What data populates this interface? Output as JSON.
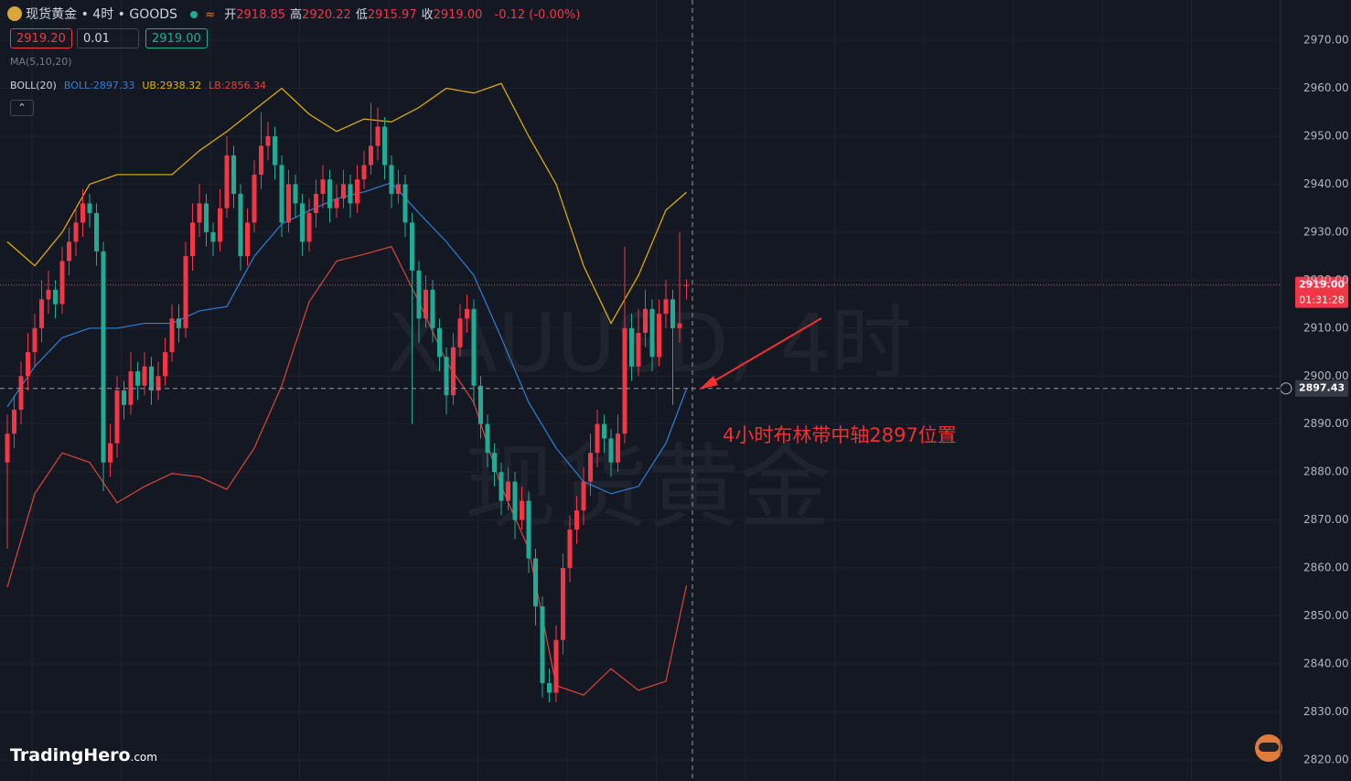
{
  "header": {
    "symbol": "现货黄金 • 4时 • GOODS",
    "ohlc": [
      {
        "label": "开",
        "value": "2918.85"
      },
      {
        "label": "高",
        "value": "2920.22"
      },
      {
        "label": "低",
        "value": "2915.97"
      },
      {
        "label": "收",
        "value": "2919.00"
      }
    ],
    "change": "-0.12 (-0.00%)",
    "sell": "2919.20",
    "qty": "0.01",
    "buy": "2919.00",
    "ma": "MA(5,10,20)",
    "boll_title": "BOLL(20)"
  },
  "chart_data": {
    "type": "candlestick",
    "open": [
      2882,
      2888,
      2893,
      2900,
      2905,
      2910,
      2916,
      2918,
      2915,
      2924,
      2928,
      2932,
      2936,
      2934,
      2926,
      2882,
      2886,
      2897,
      2894,
      2901,
      2898,
      2902,
      2897,
      2900,
      2905,
      2912,
      2910,
      2925,
      2932,
      2936,
      2930,
      2928,
      2935,
      2946,
      2938,
      2925,
      2932,
      2942,
      2948,
      2950,
      2944,
      2932,
      2940,
      2936,
      2928,
      2934,
      2938,
      2941,
      2935,
      2937,
      2940,
      2936,
      2941,
      2944,
      2948,
      2952,
      2944,
      2938,
      2940,
      2932,
      2922,
      2912,
      2918,
      2910,
      2904,
      2896,
      2906,
      2912,
      2914,
      2898,
      2890,
      2884,
      2880,
      2874,
      2878,
      2870,
      2874,
      2862,
      2852,
      2836,
      2834,
      2845,
      2860,
      2868,
      2872,
      2878,
      2884,
      2890,
      2887,
      2882,
      2888,
      2910,
      2902,
      2909,
      2914,
      2904,
      2913,
      2916,
      2910,
      2918.85
    ],
    "high": [
      2892,
      2896,
      2903,
      2909,
      2913,
      2920,
      2922,
      2920,
      2927,
      2931,
      2935,
      2939,
      2938,
      2936,
      2928,
      2890,
      2900,
      2899,
      2905,
      2903,
      2905,
      2904,
      2903,
      2908,
      2915,
      2915,
      2928,
      2936,
      2940,
      2938,
      2932,
      2939,
      2950,
      2948,
      2940,
      2935,
      2945,
      2955,
      2953,
      2952,
      2946,
      2943,
      2942,
      2938,
      2937,
      2941,
      2944,
      2943,
      2940,
      2943,
      2942,
      2944,
      2947,
      2957,
      2956,
      2954,
      2946,
      2943,
      2942,
      2934,
      2924,
      2921,
      2920,
      2912,
      2906,
      2909,
      2915,
      2917,
      2916,
      2900,
      2892,
      2886,
      2882,
      2881,
      2880,
      2877,
      2876,
      2864,
      2854,
      2839,
      2848,
      2863,
      2871,
      2875,
      2881,
      2888,
      2893,
      2892,
      2889,
      2892,
      2927,
      2913,
      2914,
      2918,
      2916,
      2916,
      2920,
      2918,
      2930,
      2920.22
    ],
    "low": [
      2864,
      2885,
      2890,
      2897,
      2902,
      2907,
      2913,
      2912,
      2913,
      2921,
      2925,
      2929,
      2931,
      2923,
      2876,
      2879,
      2883,
      2891,
      2892,
      2895,
      2896,
      2894,
      2895,
      2898,
      2903,
      2907,
      2908,
      2922,
      2929,
      2927,
      2925,
      2926,
      2933,
      2935,
      2922,
      2923,
      2930,
      2939,
      2945,
      2941,
      2929,
      2930,
      2933,
      2925,
      2926,
      2931,
      2935,
      2932,
      2933,
      2935,
      2933,
      2934,
      2939,
      2942,
      2945,
      2941,
      2935,
      2936,
      2929,
      2890,
      2907,
      2910,
      2907,
      2901,
      2892,
      2894,
      2904,
      2909,
      2894,
      2887,
      2881,
      2877,
      2871,
      2872,
      2866,
      2868,
      2859,
      2848,
      2833,
      2832,
      2832,
      2842,
      2857,
      2865,
      2869,
      2875,
      2881,
      2884,
      2879,
      2880,
      2886,
      2899,
      2900,
      2906,
      2901,
      2902,
      2910,
      2894,
      2907,
      2915.97
    ],
    "close": [
      2888,
      2893,
      2900,
      2905,
      2910,
      2916,
      2918,
      2915,
      2924,
      2928,
      2932,
      2936,
      2934,
      2926,
      2882,
      2886,
      2897,
      2894,
      2901,
      2898,
      2902,
      2897,
      2900,
      2905,
      2912,
      2910,
      2925,
      2932,
      2936,
      2930,
      2928,
      2935,
      2946,
      2938,
      2925,
      2932,
      2942,
      2948,
      2950,
      2944,
      2932,
      2940,
      2936,
      2928,
      2934,
      2938,
      2941,
      2935,
      2937,
      2940,
      2936,
      2941,
      2944,
      2948,
      2952,
      2944,
      2938,
      2940,
      2932,
      2922,
      2912,
      2918,
      2910,
      2904,
      2896,
      2906,
      2912,
      2914,
      2898,
      2890,
      2884,
      2880,
      2874,
      2878,
      2870,
      2874,
      2862,
      2852,
      2836,
      2834,
      2845,
      2860,
      2868,
      2872,
      2878,
      2884,
      2890,
      2887,
      2882,
      2888,
      2910,
      2902,
      2909,
      2914,
      2904,
      2913,
      2916,
      2910,
      2911,
      2919
    ],
    "up_color": "#f23645",
    "down_color": "#22ab94",
    "series": [
      {
        "label": "BOLL:2897.33",
        "color": "#2f7fd6",
        "x": [
          0,
          4,
          8,
          12,
          16,
          20,
          24,
          28,
          32,
          36,
          40,
          44,
          48,
          52,
          56,
          60,
          64,
          68,
          72,
          76,
          80,
          84,
          88,
          92,
          96,
          99
        ],
        "values": [
          2893.6,
          2902,
          2908,
          2910,
          2910,
          2911,
          2911,
          2913.6,
          2914.5,
          2925,
          2931.7,
          2934.5,
          2937,
          2938.4,
          2940.3,
          2934,
          2928,
          2921,
          2908,
          2894.5,
          2885,
          2878,
          2875.5,
          2877,
          2886,
          2897.33
        ]
      },
      {
        "label": "UB:2938.32",
        "color": "#e6b400",
        "x": [
          0,
          4,
          8,
          12,
          16,
          20,
          24,
          28,
          32,
          36,
          40,
          44,
          48,
          52,
          56,
          60,
          64,
          68,
          72,
          76,
          80,
          84,
          88,
          92,
          96,
          99
        ],
        "values": [
          2928,
          2923,
          2930,
          2940,
          2942,
          2942,
          2942,
          2947,
          2951,
          2955.5,
          2960,
          2954.6,
          2951,
          2953.6,
          2953,
          2956,
          2960,
          2959,
          2961,
          2950,
          2940,
          2923,
          2911,
          2921,
          2934.6,
          2938.32
        ]
      },
      {
        "label": "LB:2856.34",
        "color": "#e0443a",
        "x": [
          0,
          4,
          8,
          12,
          16,
          20,
          24,
          28,
          32,
          36,
          40,
          44,
          48,
          52,
          56,
          60,
          64,
          68,
          72,
          76,
          80,
          84,
          88,
          92,
          96,
          99
        ],
        "values": [
          2856,
          2875.5,
          2884,
          2882,
          2873.6,
          2877,
          2879.7,
          2879,
          2876.4,
          2885,
          2898,
          2915.5,
          2924,
          2925.4,
          2927,
          2915.5,
          2903,
          2894.5,
          2877,
          2864,
          2835.5,
          2833.5,
          2839,
          2834.5,
          2836.4,
          2856.34
        ]
      }
    ],
    "ylim": [
      2815.6,
      2978.4
    ],
    "yticks": [
      {
        "value": 2820,
        "label": "2820.00"
      },
      {
        "value": 2830,
        "label": "2830.00"
      },
      {
        "value": 2840,
        "label": "2840.00"
      },
      {
        "value": 2850,
        "label": "2850.00"
      },
      {
        "value": 2860,
        "label": "2860.00"
      },
      {
        "value": 2870,
        "label": "2870.00"
      },
      {
        "value": 2880,
        "label": "2880.00"
      },
      {
        "value": 2890,
        "label": "2890.00"
      },
      {
        "value": 2900,
        "label": "2900.00"
      },
      {
        "value": 2910,
        "label": "2910.00"
      },
      {
        "value": 2920,
        "label": "2920.00"
      },
      {
        "value": 2930,
        "label": "2930.00"
      },
      {
        "value": 2940,
        "label": "2940.00"
      },
      {
        "value": 2950,
        "label": "2950.00"
      },
      {
        "value": 2960,
        "label": "2960.00"
      },
      {
        "value": 2970,
        "label": "2970.00"
      }
    ],
    "grid": true,
    "last_price": {
      "value": 2919,
      "label": "2919.00"
    },
    "countdown": "01:31:28",
    "crosshair": 2897.43
  },
  "watermark": [
    "XAUUSD, 4时",
    "现货黄金"
  ],
  "annotation": "4小时布林带中轴2897位置",
  "logo": {
    "name": "TradingHero",
    "suffix": ".com"
  }
}
